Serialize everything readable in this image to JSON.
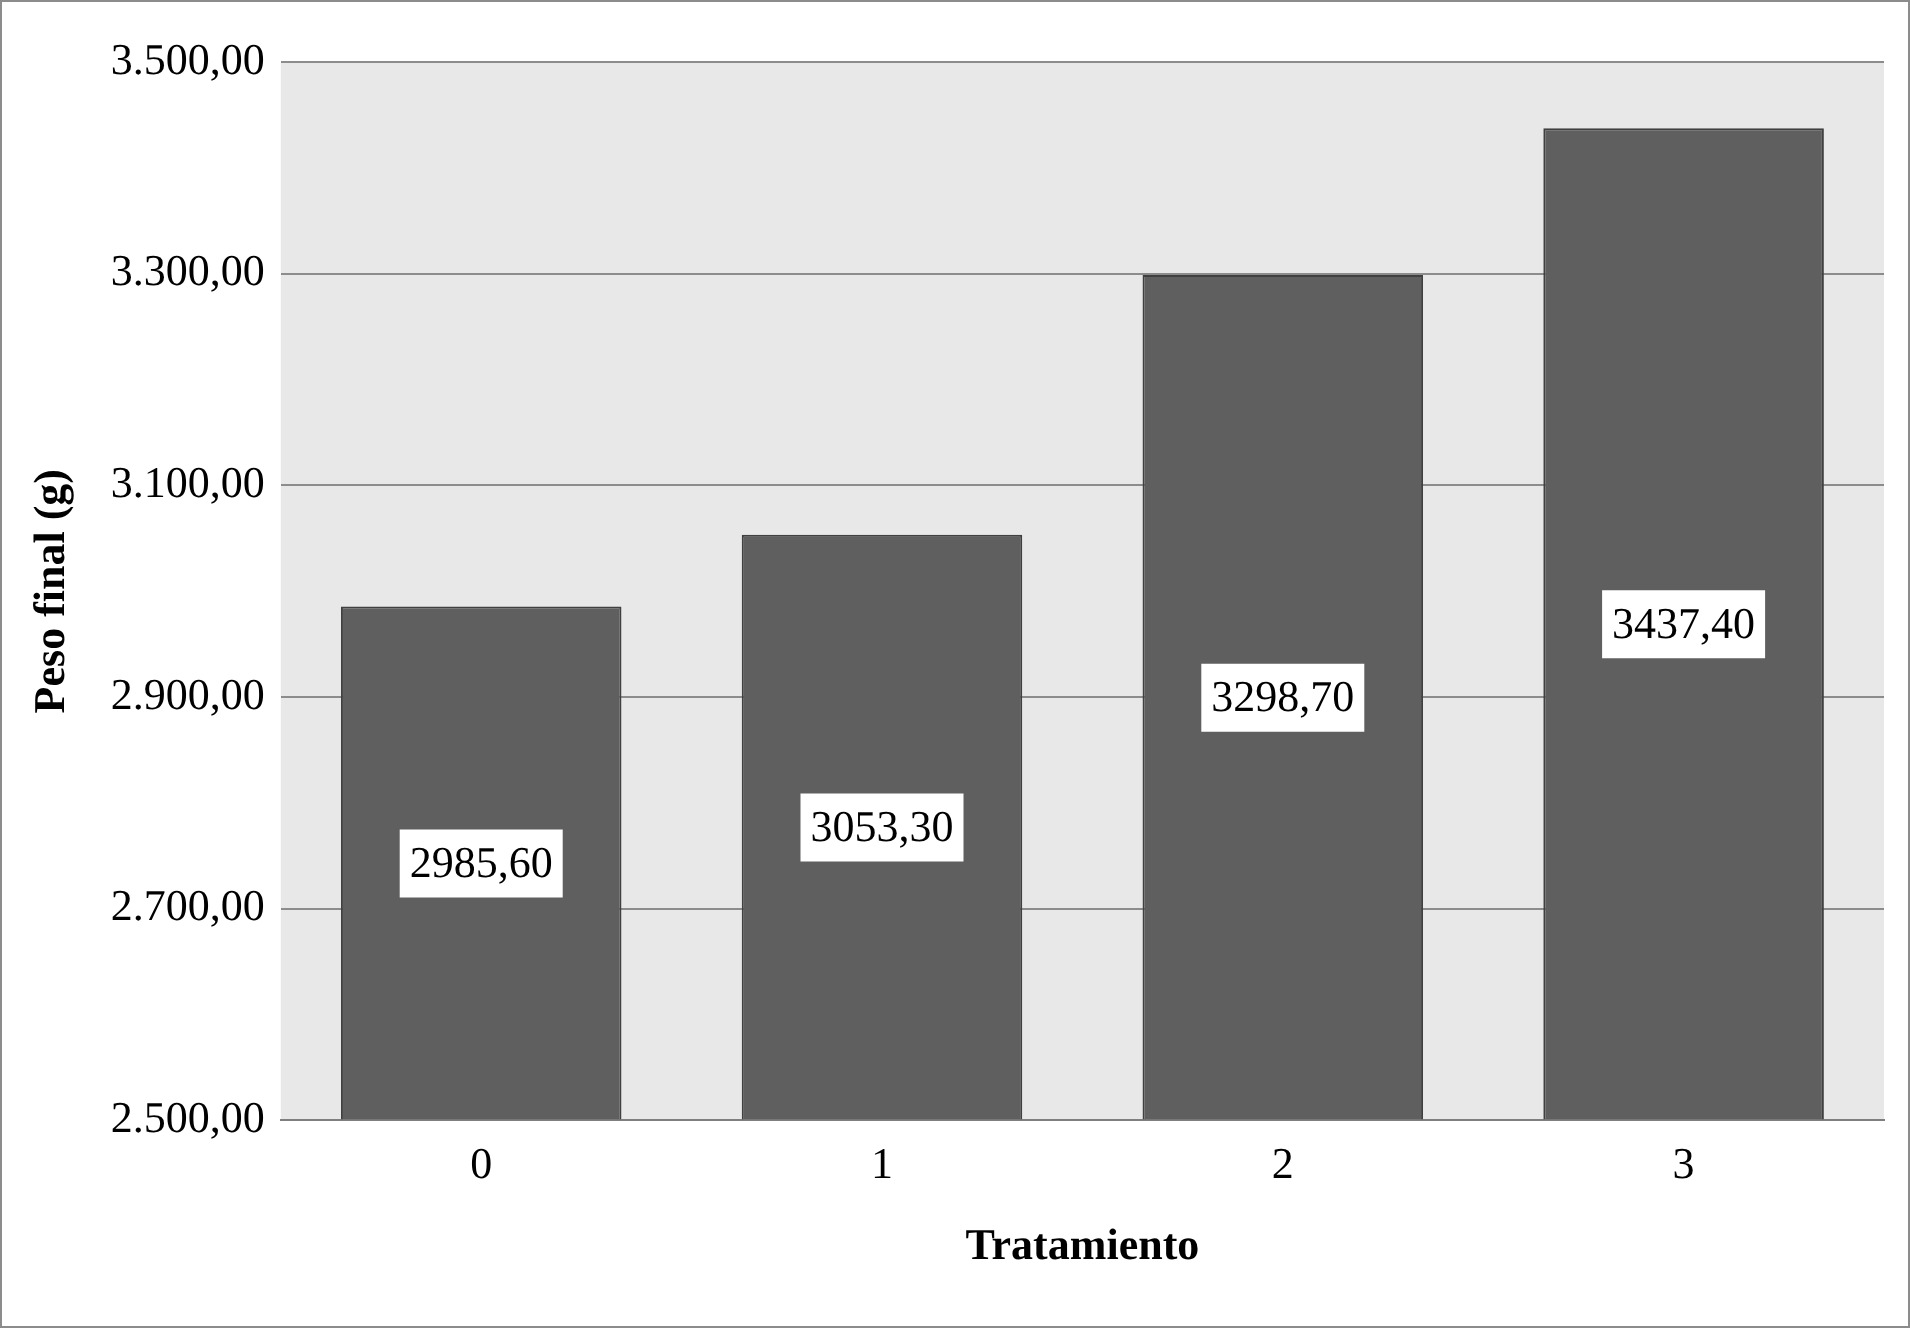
{
  "chart_data": {
    "type": "bar",
    "xlabel": "Tratamiento",
    "ylabel": "Peso final (g)",
    "categories": [
      "0",
      "1",
      "2",
      "3"
    ],
    "values": [
      2985.6,
      3053.3,
      3298.7,
      3437.4
    ],
    "value_labels": [
      "2985,60",
      "3053,30",
      "3298,70",
      "3437,40"
    ],
    "color": "#5f5f5f",
    "ylim": [
      2500,
      3500
    ],
    "yticks": [
      {
        "value": 2500,
        "label": "2.500,00"
      },
      {
        "value": 2700,
        "label": "2.700,00"
      },
      {
        "value": 2900,
        "label": "2.900,00"
      },
      {
        "value": 3100,
        "label": "3.100,00"
      },
      {
        "value": 3300,
        "label": "3.300,00"
      },
      {
        "value": 3500,
        "label": "3.500,00"
      }
    ],
    "grid": "y",
    "legend": false
  }
}
